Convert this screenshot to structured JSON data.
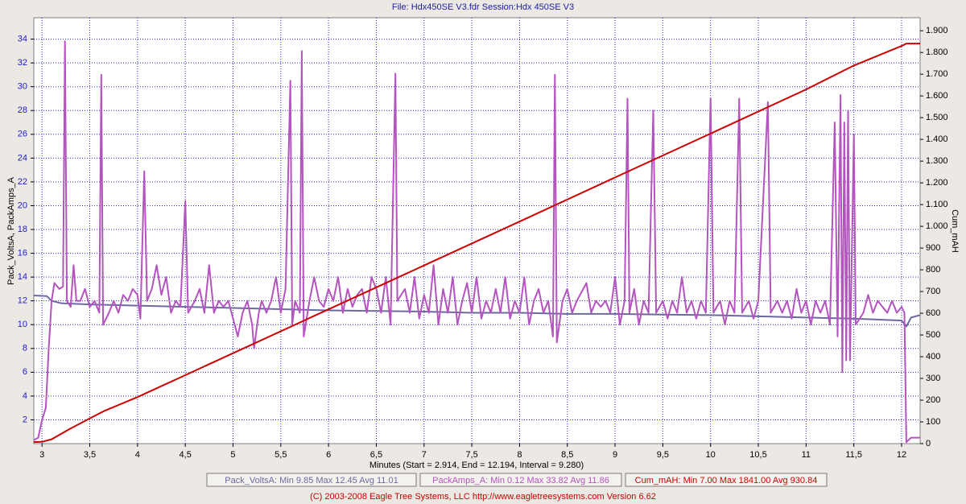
{
  "chart_data": {
    "type": "line",
    "title": "File: Hdx450SE V3.fdr   Session:Hdx 450SE V3",
    "x_label": "Minutes (Start = 2.914,  End = 12.194,  Interval =  9.280)",
    "y_label": "Pack_VoltsA, PackAmps_A",
    "y2_label": "Cum_mAH",
    "footer": "(C) 2003-2008 Eagle Tree Systems, LLC      http://www.eagletreesystems.com      Version 6.62",
    "grid": true,
    "xlim": [
      2.914,
      12.194
    ],
    "xticks": [
      3,
      {
        "value": 3.5,
        "label": "3,5"
      },
      4,
      {
        "value": 4.5,
        "label": "4,5"
      },
      5,
      {
        "value": 5.5,
        "label": "5,5"
      },
      6,
      {
        "value": 6.5,
        "label": "6,5"
      },
      7,
      {
        "value": 7.5,
        "label": "7,5"
      },
      8,
      {
        "value": 8.5,
        "label": "8,5"
      },
      9,
      {
        "value": 9.5,
        "label": "9,5"
      },
      10,
      {
        "value": 10.5,
        "label": "10,5"
      },
      11,
      {
        "value": 11.5,
        "label": "11,5"
      },
      12
    ],
    "ylim": [
      0,
      35.8
    ],
    "yticks": [
      2,
      4,
      6,
      8,
      10,
      12,
      14,
      16,
      18,
      20,
      22,
      24,
      26,
      28,
      30,
      32,
      34
    ],
    "y2lim": [
      0,
      1960
    ],
    "y2ticks": [
      0,
      100,
      200,
      300,
      400,
      500,
      600,
      700,
      800,
      900,
      {
        "value": 1000,
        "label": "1.000"
      },
      {
        "value": 1100,
        "label": "1.100"
      },
      {
        "value": 1200,
        "label": "1.200"
      },
      {
        "value": 1300,
        "label": "1.300"
      },
      {
        "value": 1400,
        "label": "1.400"
      },
      {
        "value": 1500,
        "label": "1.500"
      },
      {
        "value": 1600,
        "label": "1.600"
      },
      {
        "value": 1700,
        "label": "1.700"
      },
      {
        "value": 1800,
        "label": "1.800"
      },
      {
        "value": 1900,
        "label": "1.900"
      }
    ],
    "series": [
      {
        "name": "Pack_VoltsA:  Min 9.85   Max 12.45   Avg 11.01",
        "color": "#6a6aa0",
        "x": [
          2.914,
          3.05,
          3.1,
          3.2,
          3.5,
          4,
          4.5,
          5,
          5.5,
          6,
          6.5,
          7,
          7.5,
          8,
          8.5,
          9,
          9.5,
          10,
          10.5,
          11,
          11.5,
          12,
          12.05,
          12.1,
          12.194
        ],
        "values": [
          12.45,
          12.4,
          12.0,
          11.8,
          11.7,
          11.6,
          11.5,
          11.4,
          11.3,
          11.2,
          11.15,
          11.1,
          11.0,
          11.0,
          10.9,
          10.9,
          10.85,
          10.8,
          10.7,
          10.6,
          10.5,
          10.35,
          9.85,
          10.6,
          10.8
        ]
      },
      {
        "name": "PackAmps_A:  Min 0.12   Max 33.82   Avg 11.86",
        "color": "#b454be",
        "x": [
          2.914,
          2.96,
          3.0,
          3.04,
          3.07,
          3.1,
          3.13,
          3.18,
          3.22,
          3.24,
          3.26,
          3.3,
          3.33,
          3.36,
          3.4,
          3.45,
          3.5,
          3.55,
          3.6,
          3.62,
          3.64,
          3.7,
          3.75,
          3.8,
          3.85,
          3.9,
          3.95,
          4.0,
          4.03,
          4.07,
          4.1,
          4.15,
          4.2,
          4.25,
          4.3,
          4.35,
          4.4,
          4.45,
          4.5,
          4.53,
          4.6,
          4.65,
          4.7,
          4.75,
          4.8,
          4.85,
          4.9,
          4.95,
          5.0,
          5.05,
          5.1,
          5.15,
          5.2,
          5.22,
          5.27,
          5.3,
          5.35,
          5.4,
          5.45,
          5.5,
          5.55,
          5.6,
          5.62,
          5.65,
          5.7,
          5.72,
          5.74,
          5.8,
          5.85,
          5.9,
          5.95,
          6.0,
          6.05,
          6.1,
          6.15,
          6.2,
          6.25,
          6.3,
          6.35,
          6.4,
          6.45,
          6.5,
          6.55,
          6.6,
          6.65,
          6.7,
          6.72,
          6.8,
          6.85,
          6.9,
          6.95,
          7.0,
          7.05,
          7.1,
          7.15,
          7.2,
          7.25,
          7.3,
          7.35,
          7.4,
          7.45,
          7.5,
          7.55,
          7.6,
          7.65,
          7.7,
          7.75,
          7.8,
          7.85,
          7.9,
          7.95,
          8.0,
          8.05,
          8.1,
          8.15,
          8.2,
          8.25,
          8.3,
          8.35,
          8.37,
          8.39,
          8.45,
          8.5,
          8.55,
          8.6,
          8.7,
          8.75,
          8.8,
          8.85,
          8.9,
          8.95,
          9.0,
          9.05,
          9.1,
          9.13,
          9.15,
          9.2,
          9.25,
          9.3,
          9.35,
          9.4,
          9.43,
          9.5,
          9.55,
          9.6,
          9.65,
          9.7,
          9.75,
          9.8,
          9.85,
          9.9,
          9.95,
          10.0,
          10.03,
          10.1,
          10.15,
          10.2,
          10.25,
          10.3,
          10.33,
          10.4,
          10.45,
          10.5,
          10.6,
          10.63,
          10.7,
          10.75,
          10.8,
          10.85,
          10.9,
          10.95,
          11.0,
          11.05,
          11.1,
          11.15,
          11.2,
          11.25,
          11.3,
          11.33,
          11.36,
          11.38,
          11.4,
          11.42,
          11.44,
          11.46,
          11.5,
          11.52,
          11.6,
          11.65,
          11.7,
          11.75,
          11.8,
          11.85,
          11.9,
          11.95,
          12.0,
          12.03,
          12.05,
          12.1,
          12.194
        ],
        "values": [
          0.3,
          0.5,
          2,
          3,
          8,
          12,
          13.5,
          13,
          13.2,
          33.82,
          12,
          11.5,
          15,
          12,
          12,
          13,
          11.5,
          12,
          11,
          31,
          10,
          11,
          12,
          11,
          12.5,
          12,
          13,
          12.5,
          10.5,
          22.9,
          12,
          13,
          15,
          12.5,
          14,
          11,
          12,
          11.5,
          20.4,
          11,
          12,
          13,
          11,
          15,
          11,
          12,
          11.5,
          12,
          10.5,
          9,
          11,
          12,
          10,
          8,
          11,
          12,
          11,
          12,
          14,
          11,
          13,
          30.5,
          10,
          12,
          11,
          33,
          9,
          12,
          14,
          12,
          11.5,
          13,
          12,
          14,
          11,
          13,
          11.5,
          12.5,
          13,
          11,
          14,
          13,
          11,
          14,
          10,
          31.1,
          12,
          13,
          11,
          14,
          10.5,
          12.5,
          11,
          15,
          10,
          13,
          11,
          14,
          10,
          12,
          13.5,
          11,
          14,
          10.5,
          12,
          11,
          13,
          11,
          14,
          10.5,
          12,
          11,
          14,
          10,
          12,
          13,
          11,
          12,
          9,
          31,
          8.5,
          12,
          13,
          11,
          12,
          13.5,
          11,
          12,
          11.5,
          12,
          11,
          14,
          10,
          12,
          29,
          11,
          13,
          10,
          12,
          11,
          28,
          11,
          12,
          10.5,
          12,
          11,
          14,
          11,
          12,
          10.5,
          12,
          11,
          29,
          11,
          12,
          10,
          12,
          11,
          29,
          11,
          12,
          10.5,
          12,
          28.7,
          11,
          12,
          11,
          12,
          10.5,
          13,
          11,
          12,
          10,
          12,
          11,
          12,
          10,
          27,
          9,
          29.3,
          6,
          27,
          7,
          28,
          7,
          26,
          10,
          11,
          12.5,
          11,
          12,
          11.5,
          11,
          12,
          11,
          11.5,
          11,
          0.12,
          0.5,
          0.5
        ]
      },
      {
        "name": "Cum_mAH:  Min 7.00   Max 1841.00   Avg 930.84",
        "color": "#cc0000",
        "axis": "y2",
        "x": [
          2.914,
          3.0,
          3.1,
          3.3,
          3.65,
          4,
          5,
          6,
          7,
          8,
          9,
          10,
          11,
          11.5,
          12,
          12.05,
          12.194
        ],
        "values": [
          7,
          8,
          20,
          70,
          150,
          214,
          416,
          618,
          820,
          1022,
          1225,
          1427,
          1630,
          1740,
          1830,
          1841,
          1841
        ]
      }
    ]
  }
}
